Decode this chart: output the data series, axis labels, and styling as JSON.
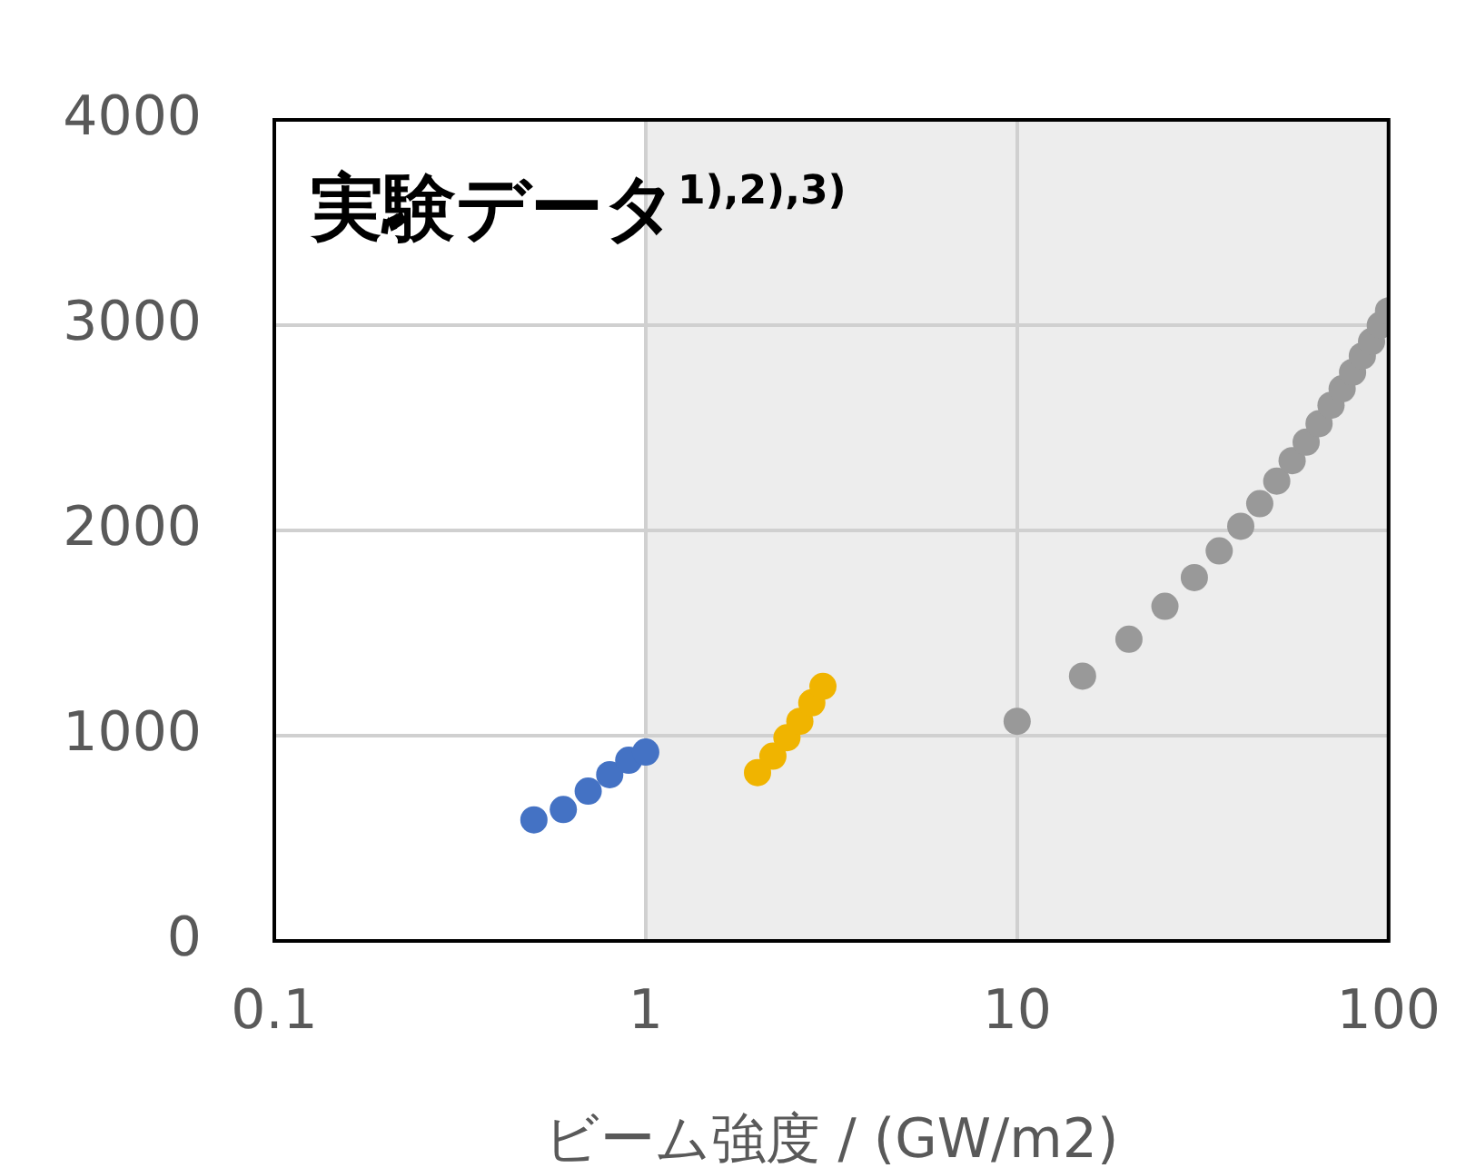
{
  "chart_data": {
    "type": "scatter",
    "title": "実験データ$^{1),2),3)}$",
    "xlabel": "ビーム強度 / (GW/m2)",
    "log": "x",
    "xlim": [
      0.1,
      100
    ],
    "xticks": [
      0.1,
      1,
      10,
      100
    ],
    "ylim": [
      0,
      4000
    ],
    "yticks": [
      0,
      1000,
      2000,
      3000,
      4000
    ],
    "grid": true,
    "marker": "circle",
    "bands": [
      {
        "axis": "x",
        "from": 1,
        "to": 100,
        "color": "#ededed"
      }
    ],
    "series": [
      {
        "color": "#4472c4",
        "x": [
          0.5,
          0.6,
          0.7,
          0.8,
          0.9,
          1.0
        ],
        "values": [
          590,
          640,
          730,
          810,
          880,
          920
        ]
      },
      {
        "color": "#f0b400",
        "x": [
          2.0,
          2.2,
          2.4,
          2.6,
          2.8,
          3.0
        ],
        "values": [
          820,
          900,
          990,
          1070,
          1160,
          1240
        ]
      },
      {
        "color": "#999999",
        "x": [
          10,
          15,
          20,
          25,
          30,
          35,
          40,
          45,
          50,
          55,
          60,
          65,
          70,
          75,
          80,
          85,
          90,
          95,
          100
        ],
        "values": [
          1070,
          1290,
          1470,
          1630,
          1770,
          1900,
          2020,
          2130,
          2240,
          2340,
          2430,
          2520,
          2610,
          2690,
          2770,
          2850,
          2920,
          3000,
          3070
        ]
      }
    ]
  }
}
